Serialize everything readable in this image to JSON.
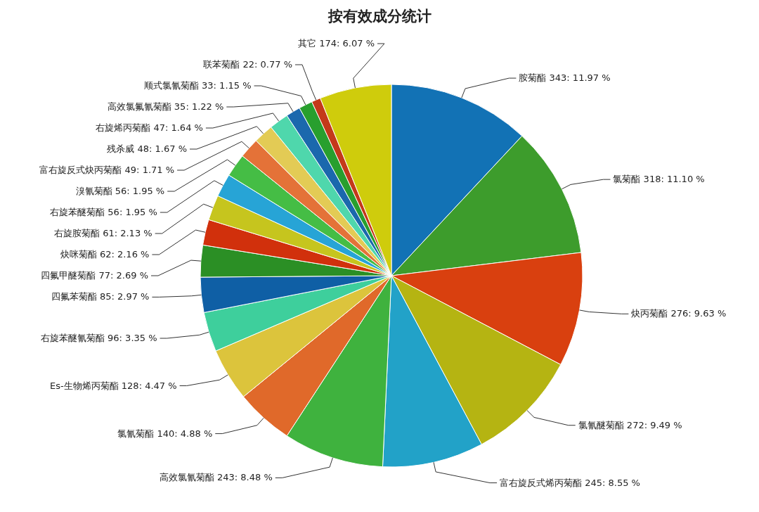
{
  "chart_data": {
    "type": "pie",
    "title": "按有效成分统计",
    "categories": [
      "胺菊酯",
      "氯菊酯",
      "炔丙菊酯",
      "氯氰醚菊酯",
      "富右旋反式烯丙菊酯",
      "高效氯氰菊酯",
      "氯氰菊酯",
      "Es-生物烯丙菊酯",
      "右旋苯醚氰菊酯",
      "四氟苯菊酯",
      "四氟甲醚菊酯",
      "炔咪菊酯",
      "右旋胺菊酯",
      "右旋苯醚菊酯",
      "溴氰菊酯",
      "富右旋反式炔丙菊酯",
      "残杀威",
      "右旋烯丙菊酯",
      "高效氯氟氰菊酯",
      "顺式氯氰菊酯",
      "联苯菊酯",
      "其它"
    ],
    "values": [
      343,
      318,
      276,
      272,
      245,
      243,
      140,
      128,
      96,
      85,
      77,
      62,
      61,
      56,
      56,
      49,
      48,
      47,
      35,
      33,
      22,
      174
    ],
    "value_labels": [
      "343: 11.97 %",
      "318: 11.10 %",
      "276: 9.63 %",
      "272: 9.49 %",
      "245: 8.55 %",
      "243: 8.48 %",
      "140: 4.88 %",
      "128: 4.47 %",
      "96: 3.35 %",
      "85: 2.97 %",
      "77: 2.69 %",
      "62: 2.16 %",
      "61: 2.13 %",
      "56: 1.95 %",
      "56: 1.95 %",
      "49: 1.71 %",
      "48: 1.67 %",
      "47: 1.64 %",
      "35: 1.22 %",
      "33: 1.15 %",
      "22: 0.77 %",
      "174: 6.07 %"
    ],
    "colors": [
      "#1272b5",
      "#3d9c2c",
      "#d9400f",
      "#b5b412",
      "#22a2c8",
      "#3fb23e",
      "#e0692a",
      "#dcc43c",
      "#3ecf9c",
      "#0f5fa5",
      "#2b8f25",
      "#d1300c",
      "#c6c51e",
      "#27a4d6",
      "#45bd45",
      "#e47238",
      "#e3cb55",
      "#4fd7ac",
      "#1b68ad",
      "#289f2e",
      "#c4391a",
      "#cfcc0c"
    ]
  }
}
